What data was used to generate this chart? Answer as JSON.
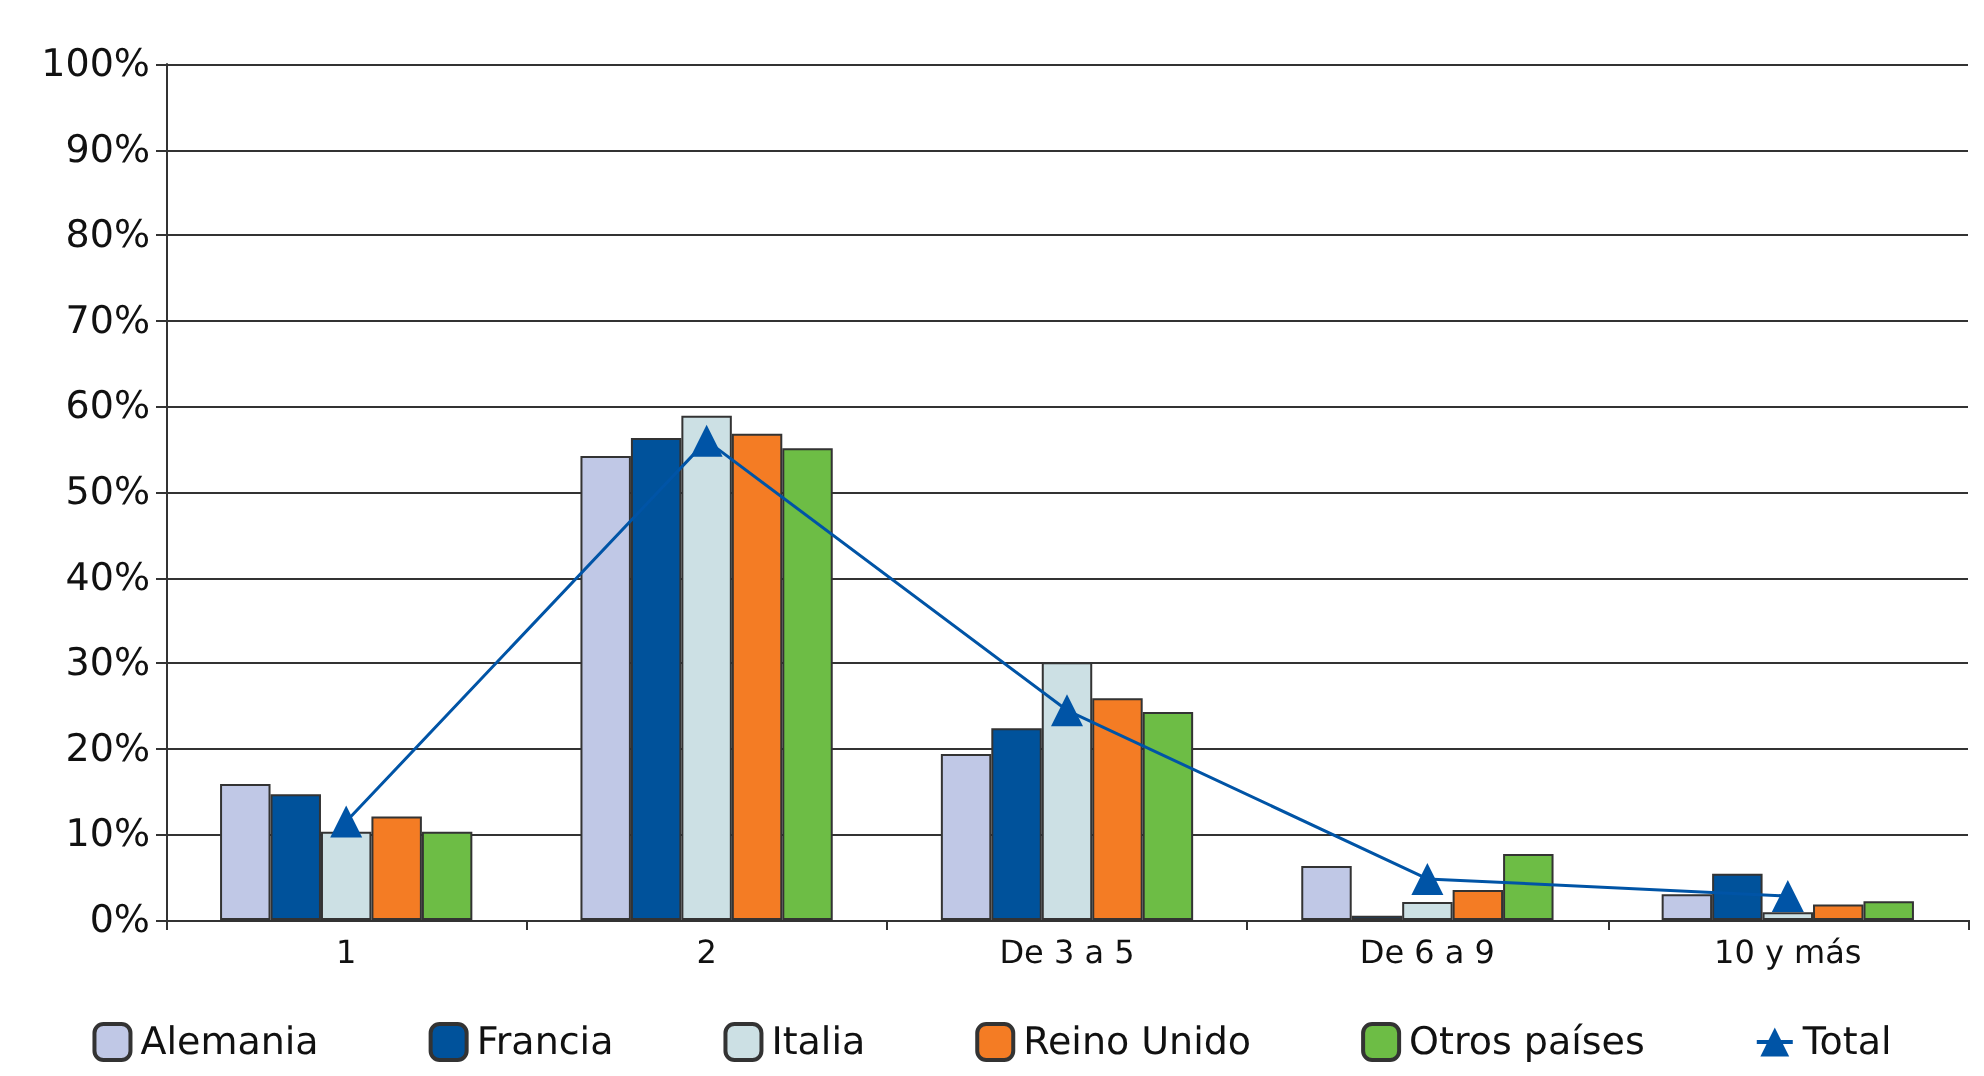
{
  "chart_data": {
    "type": "bar",
    "categories": [
      "1",
      "2",
      "De 3 a 5",
      "De 6 a 9",
      "10 y más"
    ],
    "series": [
      {
        "name": "Alemania",
        "color": "#c0c8e6",
        "values": [
          15.9,
          54.2,
          19.4,
          6.3,
          3.0
        ]
      },
      {
        "name": "Francia",
        "color": "#00529b",
        "values": [
          14.7,
          56.3,
          22.4,
          0.5,
          5.4
        ]
      },
      {
        "name": "Italia",
        "color": "#cce0e4",
        "values": [
          10.3,
          58.9,
          30.1,
          2.1,
          0.9
        ]
      },
      {
        "name": "Reino Unido",
        "color": "#f47c24",
        "values": [
          12.1,
          56.8,
          25.9,
          3.5,
          1.8
        ]
      },
      {
        "name": "Otros países",
        "color": "#6dbd45",
        "values": [
          10.3,
          55.1,
          24.3,
          7.7,
          2.2
        ]
      },
      {
        "name": "Total",
        "type": "line",
        "color": "#0054a6",
        "marker": "triangle",
        "values": [
          11.5,
          56,
          24.5,
          4.8,
          2.8
        ]
      }
    ],
    "ylim": [
      0,
      100
    ],
    "yticks": [
      {
        "value": 0,
        "label": "0%"
      },
      {
        "value": 10,
        "label": "10%"
      },
      {
        "value": 20,
        "label": "20%"
      },
      {
        "value": 30,
        "label": "30%"
      },
      {
        "value": 40,
        "label": "40%"
      },
      {
        "value": 50,
        "label": "50%"
      },
      {
        "value": 60,
        "label": "60%"
      },
      {
        "value": 70,
        "label": "70%"
      },
      {
        "value": 80,
        "label": "80%"
      },
      {
        "value": 90,
        "label": "90%"
      },
      {
        "value": 100,
        "label": "100%"
      }
    ],
    "grid": "y",
    "legend": "bottom"
  }
}
